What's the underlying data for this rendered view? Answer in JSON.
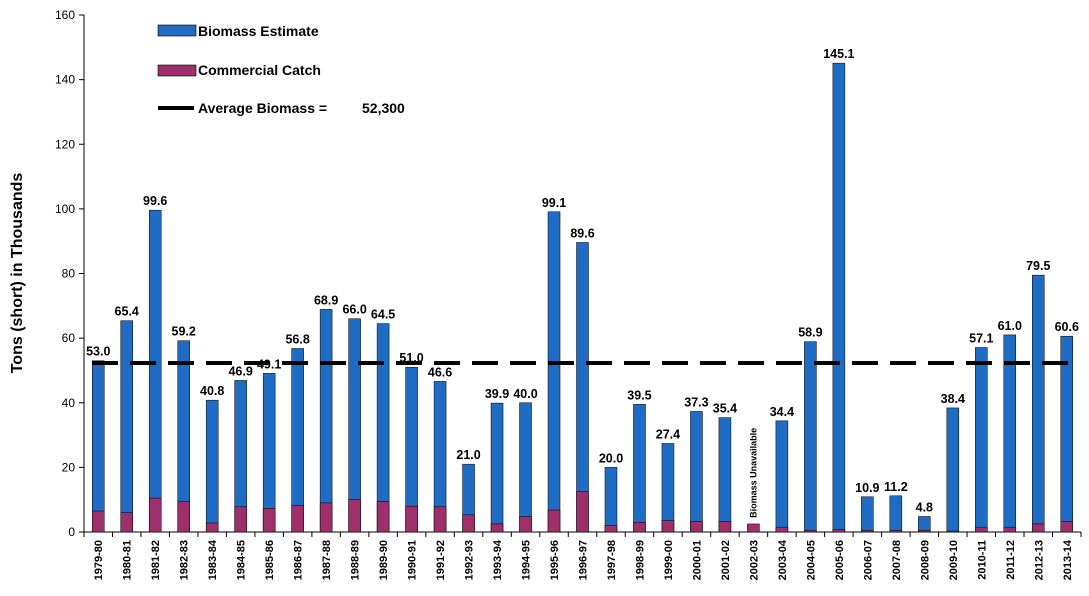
{
  "chart_data": {
    "type": "bar",
    "ylabel": "Tons (short) in Thousands",
    "xlabel": "",
    "title": "",
    "ylim": [
      0,
      160
    ],
    "yticks": [
      0,
      20,
      40,
      60,
      80,
      100,
      120,
      140,
      160
    ],
    "grid": false,
    "legend_position": "top-left",
    "legend": {
      "biomass_label": "Biomass Estimate",
      "catch_label": "Commercial Catch",
      "average_label": "Average Biomass =",
      "average_value_text": "52,300"
    },
    "average_line_value": 52.3,
    "colors": {
      "biomass": "#1f6cc5",
      "catch": "#9e2f6a",
      "average": "#000000"
    },
    "categories": [
      "1979-80",
      "1980-81",
      "1981-82",
      "1982-83",
      "1983-84",
      "1984-85",
      "1985-86",
      "1986-87",
      "1987-88",
      "1988-89",
      "1989-90",
      "1990-91",
      "1991-92",
      "1992-93",
      "1993-94",
      "1994-95",
      "1995-96",
      "1996-97",
      "1997-98",
      "1998-99",
      "1999-00",
      "2000-01",
      "2001-02",
      "2002-03",
      "2003-04",
      "2004-05",
      "2005-06",
      "2006-07",
      "2007-08",
      "2008-09",
      "2009-10",
      "2010-11",
      "2011-12",
      "2012-13",
      "2013-14"
    ],
    "series": [
      {
        "name": "Biomass Estimate",
        "values": [
          53.0,
          65.4,
          99.6,
          59.2,
          40.8,
          46.9,
          49.1,
          56.8,
          68.9,
          66.0,
          64.5,
          51.0,
          46.6,
          21.0,
          39.9,
          40.0,
          99.1,
          89.6,
          20.0,
          39.5,
          27.4,
          37.3,
          35.4,
          null,
          34.4,
          58.9,
          145.1,
          10.9,
          11.2,
          4.8,
          38.4,
          57.1,
          61.0,
          79.5,
          60.6
        ],
        "labels": [
          "53.0",
          "65.4",
          "99.6",
          "59.2",
          "40.8",
          "46.9",
          "49.1",
          "56.8",
          "68.9",
          "66.0",
          "64.5",
          "51.0",
          "46.6",
          "21.0",
          "39.9",
          "40.0",
          "99.1",
          "89.6",
          "20.0",
          "39.5",
          "27.4",
          "37.3",
          "35.4",
          "",
          "34.4",
          "58.9",
          "145.1",
          "10.9",
          "11.2",
          "4.8",
          "38.4",
          "57.1",
          "61.0",
          "79.5",
          "60.6"
        ]
      },
      {
        "name": "Commercial Catch",
        "values": [
          6.5,
          6.0,
          10.5,
          9.5,
          2.8,
          7.8,
          7.3,
          8.3,
          9.0,
          10.0,
          9.5,
          8.0,
          7.8,
          5.3,
          2.5,
          4.8,
          6.8,
          12.5,
          2.0,
          3.0,
          3.5,
          3.3,
          3.3,
          2.5,
          1.5,
          0.5,
          0.8,
          0.5,
          0.5,
          0.5,
          0.3,
          1.5,
          1.5,
          2.5,
          3.3
        ]
      }
    ],
    "annotations": [
      {
        "category": "2002-03",
        "text": "Biomass Unavailable"
      }
    ]
  }
}
